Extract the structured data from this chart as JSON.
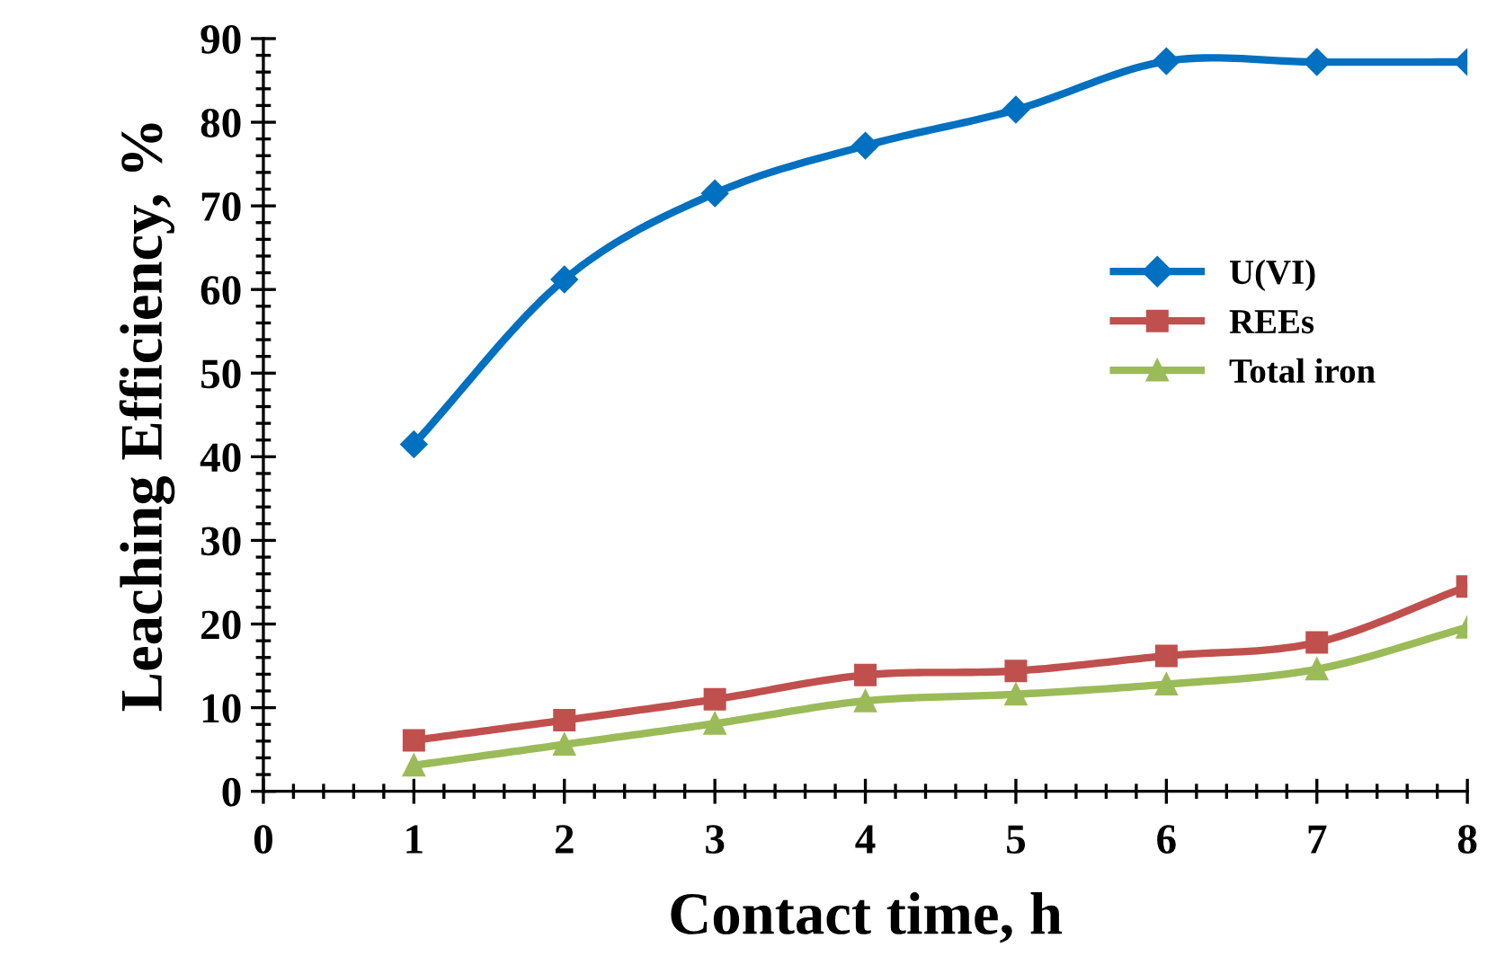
{
  "chart_data": {
    "type": "line",
    "xlabel": "Contact time, h",
    "ylabel": "Leaching Efficiency, %",
    "x": [
      1,
      2,
      3,
      4,
      5,
      6,
      7,
      8
    ],
    "series": [
      {
        "name": "U(VI)",
        "color": "#0070c0",
        "marker": "diamond",
        "values": [
          41.5,
          61.2,
          71.5,
          77.2,
          81.5,
          87.3,
          87.2,
          87.2
        ]
      },
      {
        "name": "REEs",
        "color": "#c0504d",
        "marker": "square",
        "values": [
          6.1,
          8.5,
          11.0,
          13.9,
          14.4,
          16.2,
          17.8,
          24.5
        ]
      },
      {
        "name": "Total iron",
        "color": "#9bbb59",
        "marker": "triangle",
        "values": [
          3.1,
          5.6,
          8.1,
          10.8,
          11.6,
          12.8,
          14.6,
          19.6
        ]
      }
    ],
    "xlim": [
      0,
      8
    ],
    "xticks": [
      0,
      1,
      2,
      3,
      4,
      5,
      6,
      7,
      8
    ],
    "ylim": [
      0,
      90
    ],
    "yticks": [
      0,
      10,
      20,
      30,
      40,
      50,
      60,
      70,
      80,
      90
    ],
    "grid": false,
    "legend": "right",
    "line_style": "solid"
  }
}
